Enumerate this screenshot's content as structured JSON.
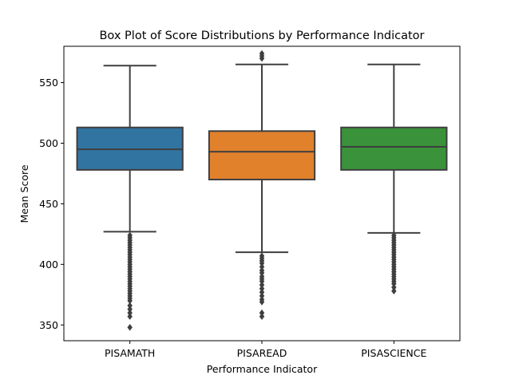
{
  "chart_data": {
    "type": "box",
    "title": "Box Plot of Score Distributions by Performance Indicator",
    "xlabel": "Performance Indicator",
    "ylabel": "Mean Score",
    "ylim": [
      337,
      580
    ],
    "yticks": [
      350,
      400,
      450,
      500,
      550
    ],
    "grid": false,
    "categories": [
      "PISAMATH",
      "PISAREAD",
      "PISASCIENCE"
    ],
    "series": [
      {
        "category": "PISAMATH",
        "color": "#3274a1",
        "whisker_low": 427,
        "q1": 478,
        "median": 495,
        "q3": 513,
        "whisker_high": 564,
        "outliers": [
          424,
          422,
          420,
          418,
          416,
          414,
          412,
          410,
          408,
          406,
          404,
          402,
          400,
          398,
          396,
          394,
          392,
          390,
          388,
          386,
          384,
          382,
          380,
          378,
          376,
          374,
          372,
          370,
          366,
          363,
          360,
          357,
          348
        ]
      },
      {
        "category": "PISAREAD",
        "color": "#e1812c",
        "whisker_low": 410,
        "q1": 470,
        "median": 493,
        "q3": 510,
        "whisker_high": 565,
        "outliers": [
          574,
          572,
          570,
          407,
          405,
          403,
          401,
          398,
          395,
          393,
          390,
          388,
          386,
          383,
          380,
          377,
          374,
          371,
          369,
          360,
          357
        ]
      },
      {
        "category": "PISASCIENCE",
        "color": "#3a923a",
        "whisker_low": 426,
        "q1": 478,
        "median": 497,
        "q3": 513,
        "whisker_high": 565,
        "outliers": [
          424,
          422,
          420,
          418,
          416,
          414,
          412,
          410,
          408,
          406,
          404,
          402,
          400,
          398,
          396,
          394,
          392,
          390,
          388,
          386,
          384,
          381,
          378
        ]
      }
    ]
  }
}
